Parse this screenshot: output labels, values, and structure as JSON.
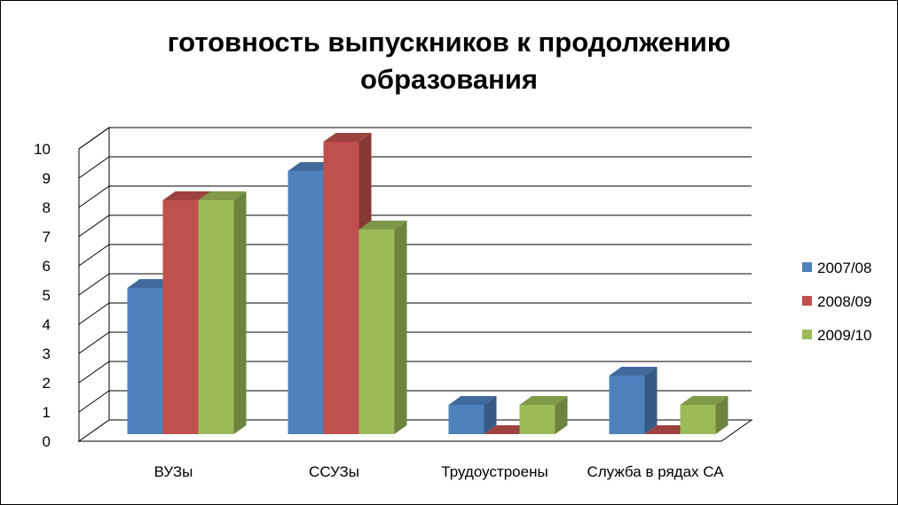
{
  "chart_data": {
    "type": "bar",
    "title": "готовность выпускников к продолжению образования",
    "title_lines": [
      "готовность выпускников к продолжению",
      "образования"
    ],
    "categories": [
      "ВУЗы",
      "ССУЗы",
      "Трудоустроены",
      "Служба в рядах СА"
    ],
    "series": [
      {
        "name": "2007/08",
        "values": [
          5,
          9,
          1,
          2
        ],
        "color": "#4F81BD"
      },
      {
        "name": "2008/09",
        "values": [
          8,
          10,
          0,
          0
        ],
        "color": "#C0504D"
      },
      {
        "name": "2009/10",
        "values": [
          8,
          7,
          1,
          1
        ],
        "color": "#9BBB59"
      }
    ],
    "ylim": [
      0,
      10
    ],
    "yticks": [
      0,
      1,
      2,
      3,
      4,
      5,
      6,
      7,
      8,
      9,
      10
    ],
    "grid": true,
    "legend": "right",
    "style": "3d-clustered-column"
  }
}
